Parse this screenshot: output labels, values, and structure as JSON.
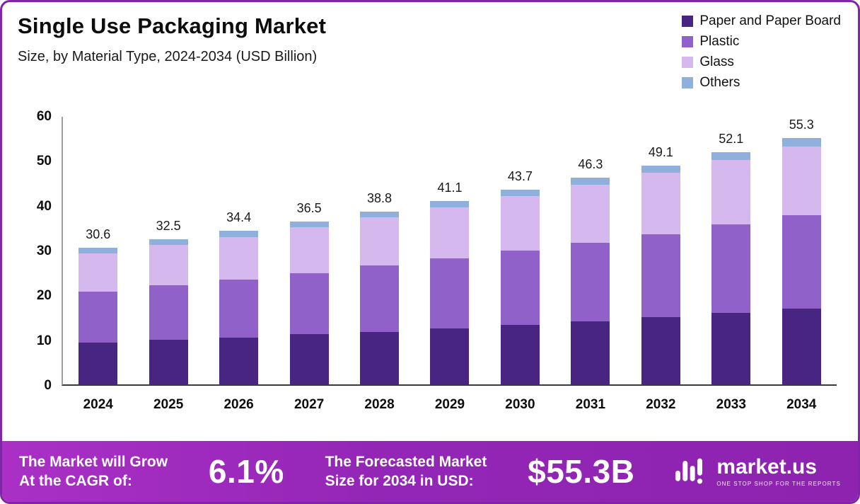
{
  "header": {
    "title": "Single Use Packaging Market",
    "subtitle": "Size, by Material Type, 2024-2034 (USD Billion)"
  },
  "chart_data": {
    "type": "bar",
    "stacked": true,
    "title": "Single Use Packaging Market",
    "subtitle": "Size, by Material Type, 2024-2034 (USD Billion)",
    "categories": [
      "2024",
      "2025",
      "2026",
      "2027",
      "2028",
      "2029",
      "2030",
      "2031",
      "2032",
      "2033",
      "2034"
    ],
    "series": [
      {
        "name": "Paper and Paper Board",
        "color": "#472580",
        "values": [
          9.3,
          10.0,
          10.5,
          11.2,
          11.8,
          12.6,
          13.3,
          14.2,
          15.1,
          16.0,
          17.0
        ]
      },
      {
        "name": "Plastic",
        "color": "#9161ca",
        "values": [
          11.5,
          12.2,
          13.0,
          13.8,
          14.8,
          15.6,
          16.7,
          17.5,
          18.6,
          19.8,
          21.0
        ]
      },
      {
        "name": "Glass",
        "color": "#d5b8ee",
        "values": [
          8.5,
          9.0,
          9.5,
          10.2,
          10.8,
          11.5,
          12.2,
          13.1,
          13.7,
          14.5,
          15.4
        ]
      },
      {
        "name": "Others",
        "color": "#90b0dc",
        "values": [
          1.3,
          1.3,
          1.4,
          1.3,
          1.4,
          1.4,
          1.5,
          1.5,
          1.7,
          1.8,
          1.9
        ]
      }
    ],
    "totals": [
      30.6,
      32.5,
      34.4,
      36.5,
      38.8,
      41.1,
      43.7,
      46.3,
      49.1,
      52.1,
      55.3
    ],
    "ylim": [
      0,
      60
    ],
    "yticks": [
      0,
      10,
      20,
      30,
      40,
      50,
      60
    ],
    "legend_position": "top-right",
    "grid": false
  },
  "footer": {
    "cagr_label": "The Market will Grow\nAt the CAGR of:",
    "cagr_value": "6.1%",
    "forecast_label": "The Forecasted Market\nSize for 2034 in USD:",
    "forecast_value": "$55.3B",
    "brand": "market.us",
    "brand_tagline": "ONE STOP SHOP FOR THE REPORTS"
  },
  "colors": {
    "border": "#8024a8",
    "footer_gradient_start": "#aa30c5",
    "footer_gradient_end": "#8e23b0",
    "axis_left": "#9e9e9e",
    "axis_bottom": "#3a3a3a",
    "text": "#111111"
  }
}
